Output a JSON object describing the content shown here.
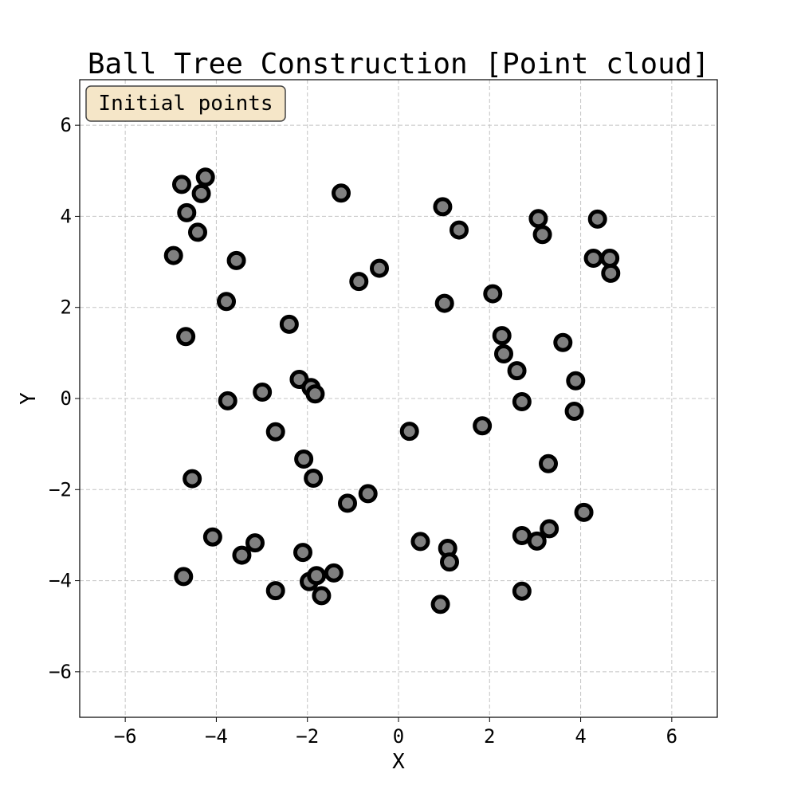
{
  "chart_data": {
    "type": "scatter",
    "title": "Ball Tree Construction [Point cloud]",
    "xlabel": "X",
    "ylabel": "Y",
    "xlim": [
      -7,
      7
    ],
    "ylim": [
      -7,
      7
    ],
    "xticks": [
      -6,
      -4,
      -2,
      0,
      2,
      4,
      6
    ],
    "yticks": [
      -6,
      -4,
      -2,
      0,
      2,
      4,
      6
    ],
    "xtick_labels": [
      "−6",
      "−4",
      "−2",
      "0",
      "2",
      "4",
      "6"
    ],
    "ytick_labels": [
      "−6",
      "−4",
      "−2",
      "0",
      "2",
      "4",
      "6"
    ],
    "grid": true,
    "annotation": "Initial points",
    "annotation_placement": "top-left",
    "marker_color": "#808080",
    "marker_edge_color": "#000000",
    "annotation_background": "#f5e6c8",
    "series": [
      {
        "name": "points",
        "points": [
          [
            -4.76,
            4.7
          ],
          [
            -4.24,
            4.86
          ],
          [
            -4.33,
            4.5
          ],
          [
            -4.65,
            4.08
          ],
          [
            -4.41,
            3.65
          ],
          [
            -4.94,
            3.14
          ],
          [
            -3.56,
            3.03
          ],
          [
            -4.67,
            1.36
          ],
          [
            -3.78,
            2.13
          ],
          [
            -2.4,
            1.63
          ],
          [
            -1.26,
            4.51
          ],
          [
            -0.87,
            2.57
          ],
          [
            -0.42,
            2.86
          ],
          [
            -3.75,
            -0.05
          ],
          [
            -2.99,
            0.14
          ],
          [
            -2.18,
            0.42
          ],
          [
            -1.92,
            0.24
          ],
          [
            -1.83,
            0.1
          ],
          [
            -2.7,
            -0.73
          ],
          [
            -2.08,
            -1.33
          ],
          [
            -1.87,
            -1.75
          ],
          [
            -1.12,
            -2.3
          ],
          [
            -0.67,
            -2.09
          ],
          [
            -4.53,
            -1.76
          ],
          [
            -4.08,
            -3.04
          ],
          [
            -3.44,
            -3.44
          ],
          [
            -3.15,
            -3.17
          ],
          [
            -2.7,
            -4.22
          ],
          [
            -4.72,
            -3.91
          ],
          [
            -2.1,
            -3.38
          ],
          [
            -1.96,
            -4.02
          ],
          [
            -1.8,
            -3.89
          ],
          [
            -1.42,
            -3.83
          ],
          [
            -1.69,
            -4.33
          ],
          [
            0.97,
            4.21
          ],
          [
            1.33,
            3.7
          ],
          [
            1.01,
            2.09
          ],
          [
            3.07,
            3.95
          ],
          [
            3.16,
            3.6
          ],
          [
            4.37,
            3.94
          ],
          [
            4.28,
            3.08
          ],
          [
            4.64,
            3.08
          ],
          [
            4.66,
            2.75
          ],
          [
            2.07,
            2.3
          ],
          [
            2.27,
            1.38
          ],
          [
            2.31,
            0.98
          ],
          [
            2.6,
            0.61
          ],
          [
            2.71,
            -0.07
          ],
          [
            3.61,
            1.23
          ],
          [
            3.89,
            0.39
          ],
          [
            3.86,
            -0.28
          ],
          [
            0.24,
            -0.72
          ],
          [
            1.84,
            -0.6
          ],
          [
            3.29,
            -1.43
          ],
          [
            4.07,
            -2.5
          ],
          [
            3.31,
            -2.86
          ],
          [
            2.71,
            -3.01
          ],
          [
            3.04,
            -3.13
          ],
          [
            0.48,
            -3.14
          ],
          [
            1.08,
            -3.29
          ],
          [
            1.12,
            -3.59
          ],
          [
            2.71,
            -4.23
          ],
          [
            0.92,
            -4.52
          ]
        ]
      }
    ]
  }
}
